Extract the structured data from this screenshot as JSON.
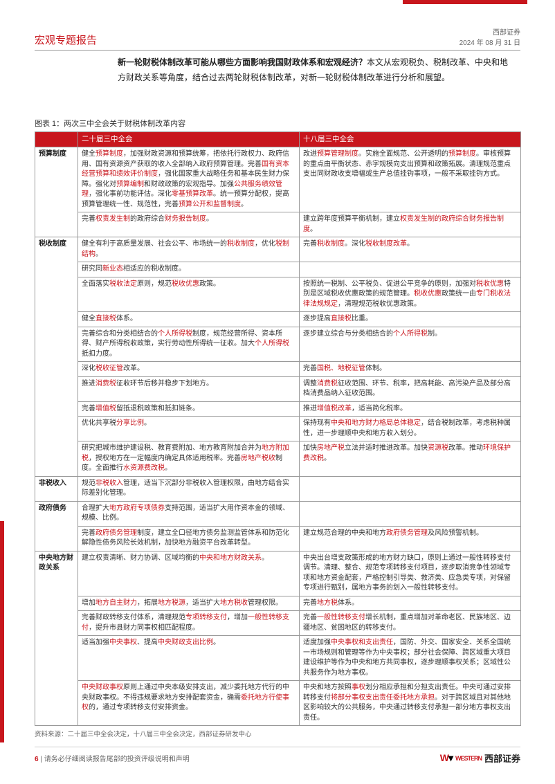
{
  "header": {
    "left": "宏观专题报告",
    "org": "西部证券",
    "date": "2024 年 08 月 31 日"
  },
  "intro": {
    "q": "新一轮财税体制改革可能从哪些方面影响我国财政体系和宏观经济？",
    "a": "本文从宏观税负、税制改革、中央和地方财政关系等角度，结合过去两轮财税体制改革，对新一轮财税体制改革进行分析和展望。"
  },
  "table": {
    "title": "图表 1：两次三中全会关于财税体制改革内容",
    "headers": {
      "h1": "二十届三中全会",
      "h2": "十八届三中全会"
    },
    "rows": [
      {
        "cat": "预算制度",
        "rowspan": 2,
        "l": "健全<span class='r'>预算制度</span>，加强财政资源和预算统筹，把依托行政权力、政府信用、国有资源资产获取的收入全部纳入政府预算管理。完善<span class='r'>国有资本经营预算和绩效评价制度</span>，强化国家重大战略任务和基本民生财力保障。强化对<span class='r'>预算编制</span>和财政政策的宏观指导。加强<span class='r'>公共服务绩效管理</span>，强化事前功能评估。深化<span class='r'>零基预算改革</span>。统一预算分配权，提高预算管理统一性、规范性，完善<span class='r'>预算公开和监督制度</span>。",
        "r": "改进<span class='r'>预算管理制度</span>。实施全面规范、公开透明的<span class='r'>预算制度</span>。审核预算的重点由平衡状态、赤字规模向支出预算和政策拓展。清理规范重点支出同财政收支增幅或生产总值挂钩事项，一般不采取挂钩方式。"
      },
      {
        "l": "完善<span class='r'>权责发生制</span>的政府综合<span class='r'>财务报告制度</span>。",
        "r": "建立跨年度预算平衡机制，建立<span class='r'>权责发生制的政府综合财务报告制度</span>。"
      },
      {
        "cat": "税收制度",
        "rowspan": 10,
        "l": "健全有利于高质量发展、社会公平、市场统一的<span class='r'>税收制度</span>，优化<span class='r'>税制结构</span>。",
        "r": "完善<span class='r'>税收制度</span>。深化<span class='r'>税收制度改革</span>。"
      },
      {
        "l": "研究同<span class='r'>新业态</span>相适应的税收制度。",
        "r": ""
      },
      {
        "l": "全面落实<span class='r'>税收法定</span>原则，规范<span class='r'>税收优惠</span>政策。",
        "r": "按照统一税制、公平税负、促进公平竞争的原则，加强对<span class='r'>税收优惠</span>特别是区域税收优惠政策的规范管理。<span class='r'>税收优惠</span>政策统一由<span class='r'>专门税收法律法规规定</span>，清理规范税收优惠政策。"
      },
      {
        "l": "健全<span class='r'>直接税</span>体系。",
        "r": "逐步提高<span class='r'>直接税</span>比重。"
      },
      {
        "l": "完善综合和分类相结合的<span class='r'>个人所得税</span>制度，规范经营所得、资本所得、财产所得税收政策，实行劳动性所得统一征收。加大<span class='r'>个人所得税</span>抵扣力度。",
        "r": "逐步建立综合与分类相结合的<span class='r'>个人所得税</span>制。"
      },
      {
        "l": "深化<span class='r'>税收征管</span>改革。",
        "r": "完善<span class='r'>国税、地税征管</span>体制。"
      },
      {
        "l": "推进<span class='r'>消费税</span>征收环节后移并稳步下划地方。",
        "r": "调整<span class='r'>消费税</span>征收范围、环节、税率，把高耗能、高污染产品及部分高档消费品纳入征收范围。"
      },
      {
        "l": "完善<span class='r'>增值税</span>留抵退税政策和抵扣链条。",
        "r": "推进<span class='r'>增值税改革</span>，适当简化税率。"
      },
      {
        "l": "优化共享税<span class='r'>分享比例</span>。",
        "r": "保持现有<span class='r'>中央和地方财力格局总体稳定</span>，结合税制改革，考虑税种属性，进一步理顺中央和地方收入划分。"
      },
      {
        "l": "研究把城市维护建设税、教育费附加、地方教育附加合并为<span class='r'>地方附加税</span>，授权地方在一定幅度内确定具体适用税率。完善<span class='r'>房地产税收</span>制度。全面推行<span class='r'>水资源费改税</span>。",
        "r": "加快<span class='r'>房地产税</span>立法并适时推进改革。加快<span class='r'>资源税</span>改革。推动<span class='r'>环境保护费改税</span>。"
      },
      {
        "cat": "非税收入",
        "rowspan": 1,
        "l": "规范<span class='r'>非税收入</span>管理，适当下沉部分非税收入管理权限，由地方结合实际差别化管理。",
        "r": ""
      },
      {
        "cat": "政府债务",
        "rowspan": 2,
        "l": "合理扩大<span class='r'>地方政府专项债券</span>支持范围，适当扩大用作资本金的领域、规模、比例。",
        "r": ""
      },
      {
        "l": "完善<span class='r'>政府债务管理</span>制度，建立全口径地方债务监测监管体系和防范化解隐性债务风险长效机制，加快地方融资平台改革转型。",
        "r": "建立规范合理的中央和地方<span class='r'>政府债务管理</span>及风险预警机制。"
      },
      {
        "cat": "中央地方财政关系",
        "rowspan": 5,
        "l": "建立权责清晰、财力协调、区域均衡的<span class='r'>中央和地方财政关系</span>。",
        "r": "中央出台增支政策形成的地方财力缺口，原则上通过一般性转移支付调节。清理、整合、规范专项转移支付项目，逐步取消竞争性领域专项和地方资金配套，严格控制引导类、救济类、应急类专项，对保留专项进行甄别，属地方事务的划入一般性转移支付。"
      },
      {
        "l": "增加<span class='r'>地方自主财力</span>，拓展<span class='r'>地方税源</span>，适当扩大<span class='r'>地方税收</span>管理权限。",
        "r": "完善<span class='r'>地方税</span>体系。"
      },
      {
        "l": "完善财政转移支付体系，清理规范<span class='r'>专项转移支付</span>，增加<span class='r'>一般性转移支付</span>，提升市县财力同事权相匹配程度。",
        "r": "完善<span class='r'>一般性转移支付</span>增长机制，重点增加对革命老区、民族地区、边疆地区、贫困地区的转移支付。"
      },
      {
        "l": "适当加强<span class='r'>中央事权</span>、提高<span class='r'>中央财政支出比例</span>。",
        "r": "适度加强<span class='r'>中央事权和支出责任</span>，国防、外交、国家安全、关系全国统一市场规则和管理等作为中央事权；部分社会保障、跨区域重大项目建设维护等作为中央和地方共同事权，逐步理顺事权关系；区域性公共服务作为地方事权。"
      },
      {
        "l": "<span class='r'>中央财政事权</span>原则上通过中央本级安排支出，减少委托地方代行的中央财政事权。不得违规要求地方安排配套资金，确需<span class='r'>委托地方行使事权</span>的，通过专项转移支付安排资金。",
        "r": "中央和地方按照<span class='r'>事权</span>划分相应承担和分担支出责任。中央可通过安排转移支付<span class='r'>将部分事权支出责任委托地方承担</span>。对于跨区域且对其他地区影响较大的公共服务，中央通过转移支付承担一部分地方事权支出责任。"
      }
    ],
    "source": "资料来源：二十届三中全会决定，十八届三中全会决定，西部证券研发中心"
  },
  "footer": {
    "page": "6",
    "disclaimer": " | 请务必仔细阅读报告尾部的投资评级说明和声明",
    "logo_en": "WESTERN",
    "logo_cn": "西部证券"
  },
  "colors": {
    "brand": "#c8161d",
    "text": "#333333",
    "border": "#999999",
    "muted": "#666666"
  }
}
